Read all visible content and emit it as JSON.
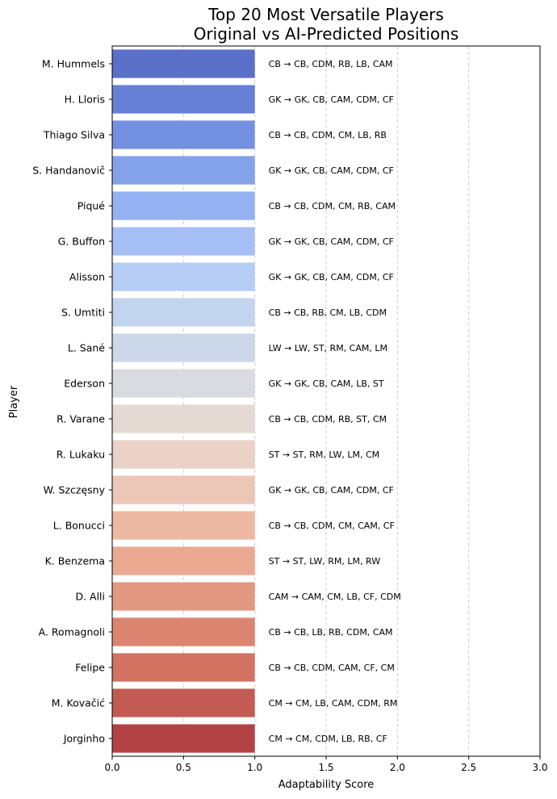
{
  "chart_data": {
    "type": "bar",
    "orientation": "horizontal",
    "title": [
      "Top 20 Most Versatile Players",
      "Original vs AI-Predicted Positions"
    ],
    "xlabel": "Adaptability Score",
    "ylabel": "Player",
    "xlim": [
      0,
      3.0
    ],
    "xticks": [
      "0.0",
      "0.5",
      "1.0",
      "1.5",
      "2.0",
      "2.5",
      "3.0"
    ],
    "grid": "vertical dashed",
    "categories": [
      "M. Hummels",
      "H. Lloris",
      "Thiago Silva",
      "S. Handanovič",
      "Piqué",
      "G. Buffon",
      "Alisson",
      "S. Umtiti",
      "L. Sané",
      "Ederson",
      "R. Varane",
      "R. Lukaku",
      "W. Szczęsny",
      "L. Bonucci",
      "K. Benzema",
      "D. Alli",
      "A. Romagnoli",
      "Felipe",
      "M. Kovačić",
      "Jorginho"
    ],
    "values": [
      1.0,
      1.0,
      1.0,
      1.0,
      1.0,
      1.0,
      1.0,
      1.0,
      1.0,
      1.0,
      1.0,
      1.0,
      1.0,
      1.0,
      1.0,
      1.0,
      1.0,
      1.0,
      1.0,
      1.0
    ],
    "annotations": [
      "CB → CB, CDM, RB, LB, CAM",
      "GK → GK, CB, CAM, CDM, CF",
      "CB → CB, CDM, CM, LB, RB",
      "GK → GK, CB, CAM, CDM, CF",
      "CB → CB, CDM, CM, RB, CAM",
      "GK → GK, CB, CAM, CDM, CF",
      "GK → GK, CB, CAM, CDM, CF",
      "CB → CB, RB, CM, LB, CDM",
      "LW → LW, ST, RM, CAM, LM",
      "GK → GK, CB, CAM, LB, ST",
      "CB → CB, CDM, RB, ST, CM",
      "ST → ST, RM, LW, LM, CM",
      "GK → GK, CB, CAM, CDM, CF",
      "CB → CB, CDM, CM, CAM, CF",
      "ST → ST, LW, RM, LM, RW",
      "CAM → CAM, CM, LB, CF, CDM",
      "CB → CB, LB, RB, CDM, CAM",
      "CB → CB, CDM, CAM, CF, CM",
      "CM → CM, LB, CAM, CDM, RM",
      "CM → CM, CDM, LB, RB, CF"
    ],
    "colors": [
      "#5a6fc7",
      "#6680d5",
      "#7391e0",
      "#84a2ea",
      "#94b1f1",
      "#a6c0f5",
      "#b6cdf5",
      "#c3d4ef",
      "#ccd8ea",
      "#d9dbe1",
      "#e4d9d3",
      "#ead2c7",
      "#ecc6b7",
      "#eeb9a2",
      "#eaa990",
      "#e39882",
      "#db8470",
      "#d27362",
      "#c35b53",
      "#b34245"
    ]
  }
}
